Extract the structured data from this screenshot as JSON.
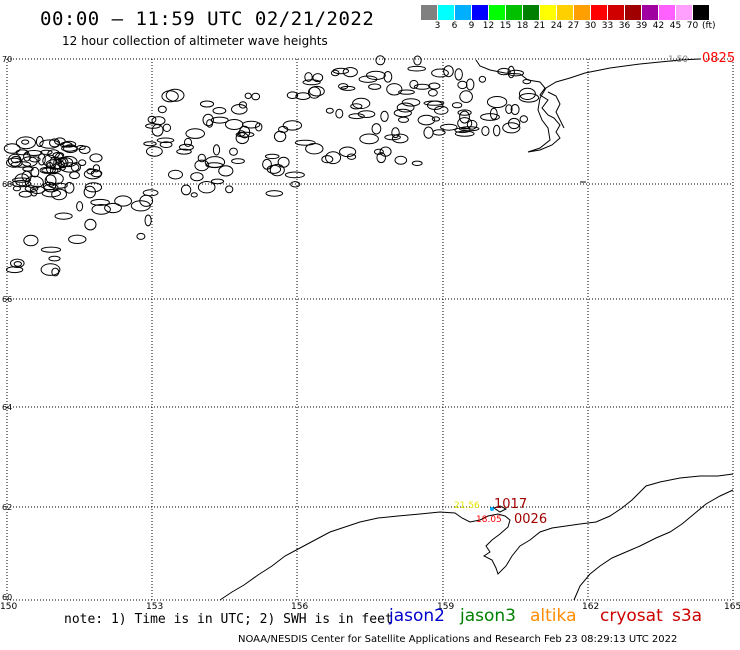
{
  "title": "00:00 – 11:59 UTC 02/21/2022",
  "subtitle": "12 hour collection of altimeter wave heights",
  "legend": {
    "colors": [
      "#808080",
      "#00ffff",
      "#00b0ff",
      "#0000ff",
      "#00ff00",
      "#00c000",
      "#008000",
      "#ffff00",
      "#ffd000",
      "#ffa000",
      "#ff0000",
      "#d00000",
      "#a00000",
      "#a000a0",
      "#ff60ff",
      "#ffa0ff",
      "#000000"
    ],
    "labels": [
      "3",
      "6",
      "9",
      "12",
      "15",
      "18",
      "21",
      "24",
      "27",
      "30",
      "33",
      "36",
      "39",
      "42",
      "45",
      "70"
    ],
    "unit": "(ft)"
  },
  "map": {
    "lat_labels": [
      "70",
      "68",
      "66",
      "64",
      "62",
      "60"
    ],
    "lon_labels": [
      "150",
      "153",
      "156",
      "159",
      "162",
      "165"
    ],
    "annotations": [
      {
        "text": "1.50",
        "color": "#808080"
      },
      {
        "text": "0825",
        "color": "#ff0000"
      },
      {
        "text": "21.56",
        "color": "#ffff00"
      },
      {
        "text": "1017",
        "color": "#a00000"
      },
      {
        "text": "18.05",
        "color": "#ff0000"
      },
      {
        "text": "0026",
        "color": "#a00000"
      }
    ]
  },
  "note": "note: 1) Time is in UTC; 2) SWH is in feet",
  "satellites": [
    {
      "name": "jason2",
      "color": "#0000cc"
    },
    {
      "name": "jason3",
      "color": "#008000"
    },
    {
      "name": "altika",
      "color": "#ff8c00"
    },
    {
      "name": "cryosat",
      "color": "#cc0000"
    },
    {
      "name": "s3a",
      "color": "#cc0000"
    }
  ],
  "footer": "NOAA/NESDIS Center for Satellite Applications and Research   Feb 23 08:29:13 UTC 2022"
}
